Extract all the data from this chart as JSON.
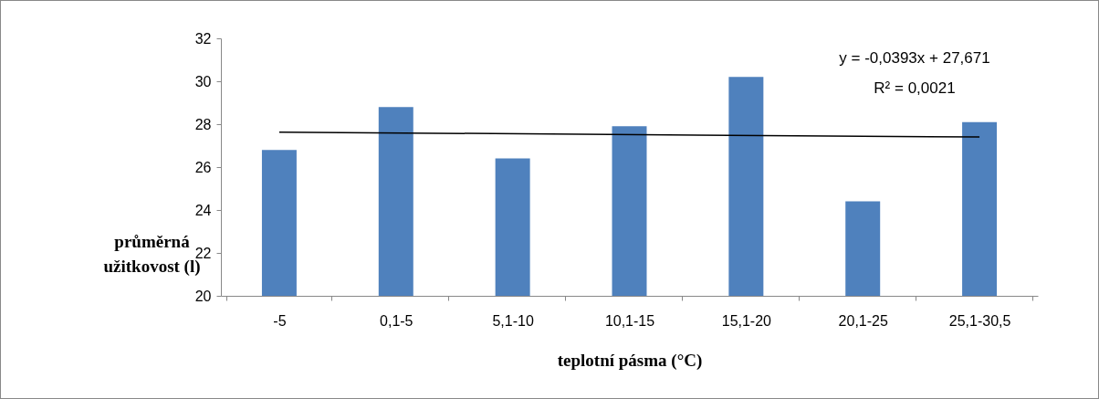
{
  "chart_data": {
    "type": "bar",
    "xlabel": "teplotní pásma (°C)",
    "ylabel": "průměrná užitkovost (l)",
    "categories": [
      "-5",
      "0,1-5",
      "5,1-10",
      "10,1-15",
      "15,1-20",
      "20,1-25",
      "25,1-30,5"
    ],
    "series": [
      {
        "color": "#4f81bd",
        "values": [
          26.8,
          28.8,
          26.4,
          27.9,
          30.2,
          24.4,
          28.1
        ]
      },
      {
        "type": "line",
        "color": "#000000",
        "x": [
          "-5",
          "25,1-30,5"
        ],
        "values": [
          27.63,
          27.4
        ]
      }
    ],
    "ylim": [
      20,
      32
    ],
    "yticks": [
      20,
      22,
      24,
      26,
      28,
      30,
      32
    ],
    "grid": false,
    "annotations": [
      "y = -0,0393x + 27,671",
      "R² = 0,0021"
    ]
  }
}
